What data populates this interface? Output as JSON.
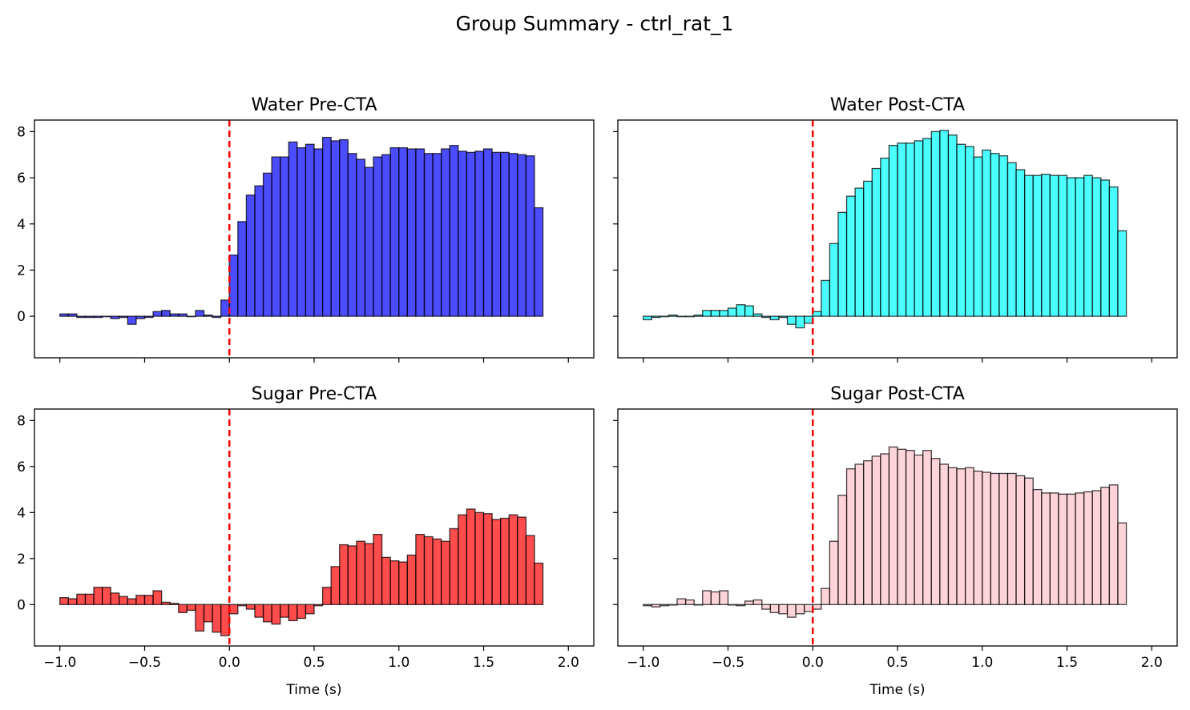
{
  "figure": {
    "title": "Group Summary - ctrl_rat_1"
  },
  "chart_data": [
    {
      "type": "bar",
      "title": "Water Pre-CTA",
      "color": "#0000ff",
      "xlabel": "",
      "xlim": [
        -1.15,
        2.15
      ],
      "ylim": [
        -1.8,
        8.5
      ],
      "xticks": [
        "-1.0",
        "-0.5",
        "0.0",
        "0.5",
        "1.0",
        "1.5",
        "2.0"
      ],
      "yticks": [
        "0",
        "2",
        "4",
        "6",
        "8"
      ],
      "xtick_labels_visible": false,
      "ytick_labels_visible": true,
      "event_line_x": 0,
      "bin_start": -1.0,
      "bin_width": 0.05,
      "values": [
        0.1,
        0.1,
        -0.05,
        -0.05,
        -0.05,
        0.0,
        -0.1,
        -0.05,
        -0.35,
        -0.1,
        -0.05,
        0.2,
        0.25,
        0.1,
        0.1,
        0.0,
        0.25,
        0.05,
        -0.05,
        0.7,
        2.65,
        4.1,
        5.25,
        5.65,
        6.2,
        6.9,
        6.9,
        7.55,
        7.3,
        7.45,
        7.25,
        7.75,
        7.6,
        7.65,
        7.05,
        6.8,
        6.45,
        6.9,
        7.0,
        7.3,
        7.3,
        7.25,
        7.25,
        7.05,
        7.05,
        7.25,
        7.4,
        7.15,
        7.1,
        7.15,
        7.25,
        7.1,
        7.1,
        7.05,
        7.0,
        6.95,
        4.7
      ]
    },
    {
      "type": "bar",
      "title": "Water Post-CTA",
      "color": "#00ffff",
      "xlabel": "",
      "xlim": [
        -1.15,
        2.15
      ],
      "ylim": [
        -1.8,
        8.5
      ],
      "xticks": [
        "-1.0",
        "-0.5",
        "0.0",
        "0.5",
        "1.0",
        "1.5",
        "2.0"
      ],
      "yticks": [
        "0",
        "2",
        "4",
        "6",
        "8"
      ],
      "xtick_labels_visible": false,
      "ytick_labels_visible": false,
      "event_line_x": 0,
      "bin_start": -1.0,
      "bin_width": 0.05,
      "values": [
        -0.15,
        -0.05,
        0.0,
        0.05,
        0.0,
        0.0,
        0.05,
        0.25,
        0.25,
        0.25,
        0.35,
        0.5,
        0.45,
        0.1,
        -0.05,
        -0.15,
        -0.05,
        -0.35,
        -0.5,
        -0.3,
        0.2,
        1.55,
        3.15,
        4.5,
        5.2,
        5.55,
        5.85,
        6.4,
        6.85,
        7.4,
        7.5,
        7.5,
        7.6,
        7.7,
        8.0,
        8.05,
        7.85,
        7.45,
        7.35,
        6.9,
        7.2,
        7.05,
        6.95,
        6.65,
        6.35,
        6.1,
        6.1,
        6.15,
        6.1,
        6.1,
        6.0,
        6.0,
        6.1,
        6.0,
        5.9,
        5.6,
        3.7
      ]
    },
    {
      "type": "bar",
      "title": "Sugar Pre-CTA",
      "color": "#ff0000",
      "xlabel": "Time (s)",
      "xlim": [
        -1.15,
        2.15
      ],
      "ylim": [
        -1.8,
        8.5
      ],
      "xticks": [
        "-1.0",
        "-0.5",
        "0.0",
        "0.5",
        "1.0",
        "1.5",
        "2.0"
      ],
      "yticks": [
        "0",
        "2",
        "4",
        "6",
        "8"
      ],
      "xtick_labels_visible": true,
      "ytick_labels_visible": true,
      "event_line_x": 0,
      "bin_start": -1.0,
      "bin_width": 0.05,
      "values": [
        0.3,
        0.25,
        0.45,
        0.45,
        0.75,
        0.75,
        0.5,
        0.35,
        0.25,
        0.4,
        0.4,
        0.6,
        0.1,
        0.05,
        -0.35,
        -0.25,
        -1.15,
        -0.75,
        -1.2,
        -1.35,
        -0.4,
        -0.05,
        -0.2,
        -0.55,
        -0.75,
        -0.85,
        -0.55,
        -0.7,
        -0.6,
        -0.4,
        -0.05,
        0.75,
        1.65,
        2.6,
        2.55,
        2.75,
        2.65,
        3.05,
        2.05,
        1.9,
        1.85,
        2.15,
        3.05,
        2.95,
        2.85,
        2.75,
        3.3,
        3.9,
        4.15,
        4.0,
        3.95,
        3.7,
        3.75,
        3.9,
        3.8,
        3.0,
        1.8
      ]
    },
    {
      "type": "bar",
      "title": "Sugar Post-CTA",
      "color": "#ffc0cb",
      "xlabel": "Time (s)",
      "xlim": [
        -1.15,
        2.15
      ],
      "ylim": [
        -1.8,
        8.5
      ],
      "xticks": [
        "-1.0",
        "-0.5",
        "0.0",
        "0.5",
        "1.0",
        "1.5",
        "2.0"
      ],
      "yticks": [
        "0",
        "2",
        "4",
        "6",
        "8"
      ],
      "xtick_labels_visible": true,
      "ytick_labels_visible": false,
      "event_line_x": 0,
      "bin_start": -1.0,
      "bin_width": 0.05,
      "values": [
        -0.05,
        -0.1,
        -0.05,
        0.0,
        0.25,
        0.2,
        0.0,
        0.6,
        0.55,
        0.6,
        0.0,
        -0.05,
        0.15,
        0.2,
        -0.2,
        -0.35,
        -0.4,
        -0.55,
        -0.4,
        -0.3,
        -0.2,
        0.7,
        2.75,
        4.75,
        5.9,
        6.1,
        6.25,
        6.45,
        6.55,
        6.85,
        6.75,
        6.7,
        6.5,
        6.7,
        6.35,
        6.1,
        5.95,
        5.9,
        5.95,
        5.8,
        5.75,
        5.7,
        5.7,
        5.7,
        5.6,
        5.5,
        5.0,
        4.85,
        4.85,
        4.8,
        4.8,
        4.85,
        4.9,
        4.95,
        5.1,
        5.2,
        3.55
      ]
    }
  ]
}
